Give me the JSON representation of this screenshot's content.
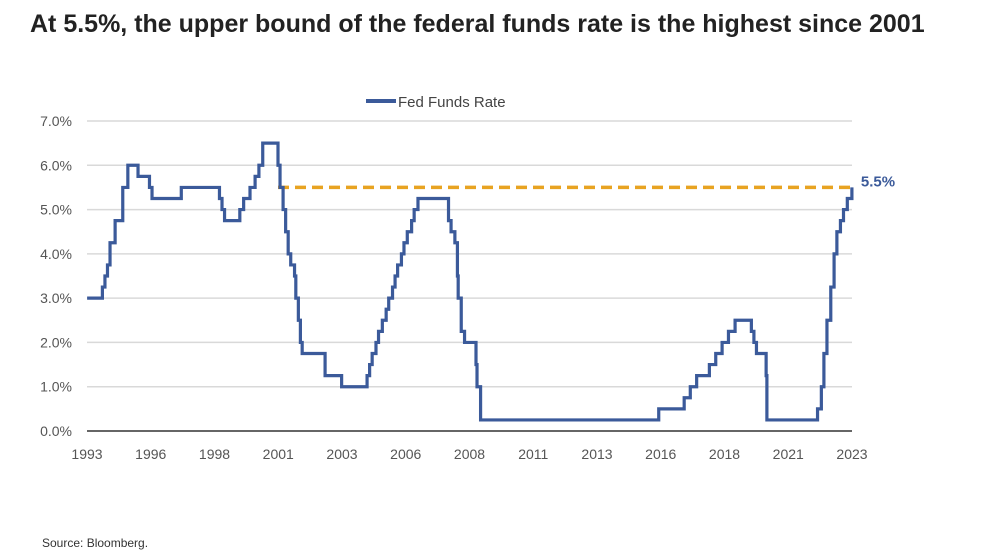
{
  "title": "At 5.5%, the upper bound of the federal funds rate is the highest since 2001",
  "source": "Source: Bloomberg.",
  "chart_data": {
    "type": "line",
    "step": true,
    "legend": {
      "position": "top",
      "entries": [
        "Fed Funds Rate"
      ]
    },
    "ylim": [
      0,
      7
    ],
    "yticks": [
      "0.0%",
      "1.0%",
      "2.0%",
      "3.0%",
      "4.0%",
      "5.0%",
      "6.0%",
      "7.0%"
    ],
    "xticks": [
      "1993",
      "1996",
      "1998",
      "2001",
      "2003",
      "2006",
      "2008",
      "2011",
      "2013",
      "2016",
      "2018",
      "2021",
      "2023"
    ],
    "grid": true,
    "colors": {
      "series": "#3b5a9a",
      "reference": "#e8a321"
    },
    "series": [
      {
        "name": "Fed Funds Rate",
        "points": [
          [
            1993.5,
            3.0
          ],
          [
            1994.1,
            3.25
          ],
          [
            1994.2,
            3.5
          ],
          [
            1994.3,
            3.75
          ],
          [
            1994.4,
            4.25
          ],
          [
            1994.6,
            4.75
          ],
          [
            1994.9,
            5.5
          ],
          [
            1995.1,
            6.0
          ],
          [
            1995.5,
            5.75
          ],
          [
            1995.95,
            5.5
          ],
          [
            1996.05,
            5.25
          ],
          [
            1997.2,
            5.5
          ],
          [
            1998.7,
            5.25
          ],
          [
            1998.8,
            5.0
          ],
          [
            1998.9,
            4.75
          ],
          [
            1999.5,
            5.0
          ],
          [
            1999.65,
            5.25
          ],
          [
            1999.9,
            5.5
          ],
          [
            2000.1,
            5.75
          ],
          [
            2000.25,
            6.0
          ],
          [
            2000.4,
            6.5
          ],
          [
            2001.0,
            6.0
          ],
          [
            2001.08,
            5.5
          ],
          [
            2001.2,
            5.0
          ],
          [
            2001.3,
            4.5
          ],
          [
            2001.4,
            4.0
          ],
          [
            2001.5,
            3.75
          ],
          [
            2001.65,
            3.5
          ],
          [
            2001.7,
            3.0
          ],
          [
            2001.8,
            2.5
          ],
          [
            2001.88,
            2.0
          ],
          [
            2001.95,
            1.75
          ],
          [
            2002.85,
            1.25
          ],
          [
            2003.5,
            1.0
          ],
          [
            2004.5,
            1.25
          ],
          [
            2004.6,
            1.5
          ],
          [
            2004.7,
            1.75
          ],
          [
            2004.85,
            2.0
          ],
          [
            2004.95,
            2.25
          ],
          [
            2005.1,
            2.5
          ],
          [
            2005.25,
            2.75
          ],
          [
            2005.35,
            3.0
          ],
          [
            2005.5,
            3.25
          ],
          [
            2005.6,
            3.5
          ],
          [
            2005.7,
            3.75
          ],
          [
            2005.85,
            4.0
          ],
          [
            2005.95,
            4.25
          ],
          [
            2006.08,
            4.5
          ],
          [
            2006.25,
            4.75
          ],
          [
            2006.35,
            5.0
          ],
          [
            2006.5,
            5.25
          ],
          [
            2007.7,
            4.75
          ],
          [
            2007.8,
            4.5
          ],
          [
            2007.95,
            4.25
          ],
          [
            2008.05,
            3.5
          ],
          [
            2008.08,
            3.0
          ],
          [
            2008.2,
            2.25
          ],
          [
            2008.33,
            2.0
          ],
          [
            2008.78,
            1.5
          ],
          [
            2008.82,
            1.0
          ],
          [
            2008.96,
            0.25
          ],
          [
            2015.96,
            0.5
          ],
          [
            2016.96,
            0.75
          ],
          [
            2017.2,
            1.0
          ],
          [
            2017.45,
            1.25
          ],
          [
            2017.95,
            1.5
          ],
          [
            2018.2,
            1.75
          ],
          [
            2018.45,
            2.0
          ],
          [
            2018.7,
            2.25
          ],
          [
            2018.96,
            2.5
          ],
          [
            2019.6,
            2.25
          ],
          [
            2019.7,
            2.0
          ],
          [
            2019.8,
            1.75
          ],
          [
            2020.18,
            1.25
          ],
          [
            2020.21,
            0.25
          ],
          [
            2022.2,
            0.5
          ],
          [
            2022.35,
            1.0
          ],
          [
            2022.45,
            1.75
          ],
          [
            2022.57,
            2.5
          ],
          [
            2022.72,
            3.25
          ],
          [
            2022.85,
            4.0
          ],
          [
            2022.96,
            4.5
          ],
          [
            2023.1,
            4.75
          ],
          [
            2023.22,
            5.0
          ],
          [
            2023.37,
            5.25
          ],
          [
            2023.55,
            5.5
          ]
        ]
      }
    ],
    "reference_line": {
      "value": 5.5,
      "from": 2001.0,
      "label": "5.5%",
      "style": "dashed"
    }
  }
}
